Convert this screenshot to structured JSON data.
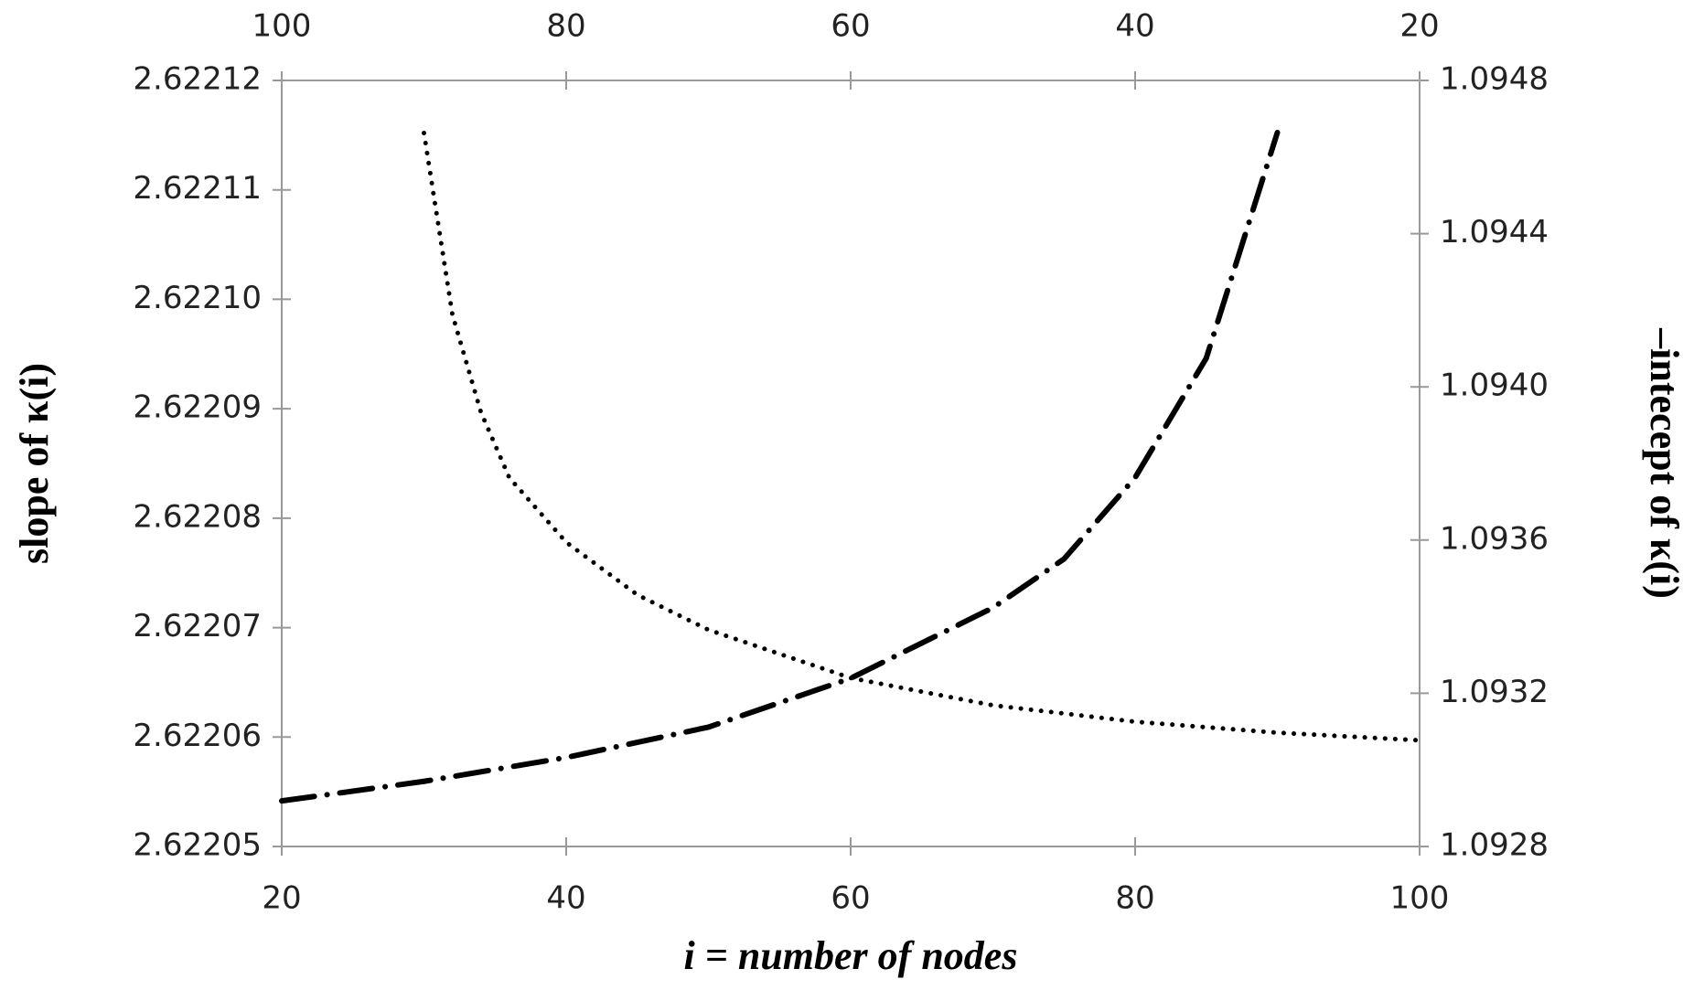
{
  "chart_data": {
    "type": "line",
    "xlabel": "i = number of nodes",
    "ylabel": "slope of κ(i)",
    "y2label": "–intecept of κ(i)",
    "xlim": [
      20,
      100
    ],
    "xticks": [
      20,
      40,
      60,
      80,
      100
    ],
    "x2lim": [
      100,
      20
    ],
    "x2ticks": [
      100,
      80,
      60,
      40,
      20
    ],
    "ylim": [
      2.62205,
      2.62212
    ],
    "yticks": [
      2.62205,
      2.62206,
      2.62207,
      2.62208,
      2.62209,
      {
        "value": 2.6221,
        "label": "2.62210"
      },
      2.62211,
      2.62212
    ],
    "y2lim": [
      1.0928,
      1.0948
    ],
    "y2ticks": [
      1.0928,
      1.0932,
      1.0936,
      {
        "value": 1.094,
        "label": "1.0940"
      },
      1.0944,
      1.0948
    ],
    "series": [
      {
        "color": "#000000",
        "dash": "dotted",
        "x": [
          30,
          32,
          34,
          36,
          40,
          45,
          50,
          60,
          70,
          80,
          90,
          100
        ],
        "values": [
          2.6221152,
          2.6220986,
          2.6220897,
          2.6220837,
          2.6220778,
          2.622073,
          2.6220698,
          2.6220654,
          2.6220629,
          2.6220614,
          2.6220604,
          2.6220597
        ]
      },
      {
        "color": "#000000",
        "dash": "dashdot",
        "axis": "y2",
        "xaxis": "x2",
        "x": [
          100,
          90,
          80,
          70,
          60,
          50,
          45,
          40,
          35,
          30
        ],
        "values": [
          1.092919,
          1.09297,
          1.0930323,
          1.0931116,
          1.0932391,
          1.0934232,
          1.0935507,
          1.0937632,
          1.0940748,
          1.094664
        ]
      }
    ]
  }
}
